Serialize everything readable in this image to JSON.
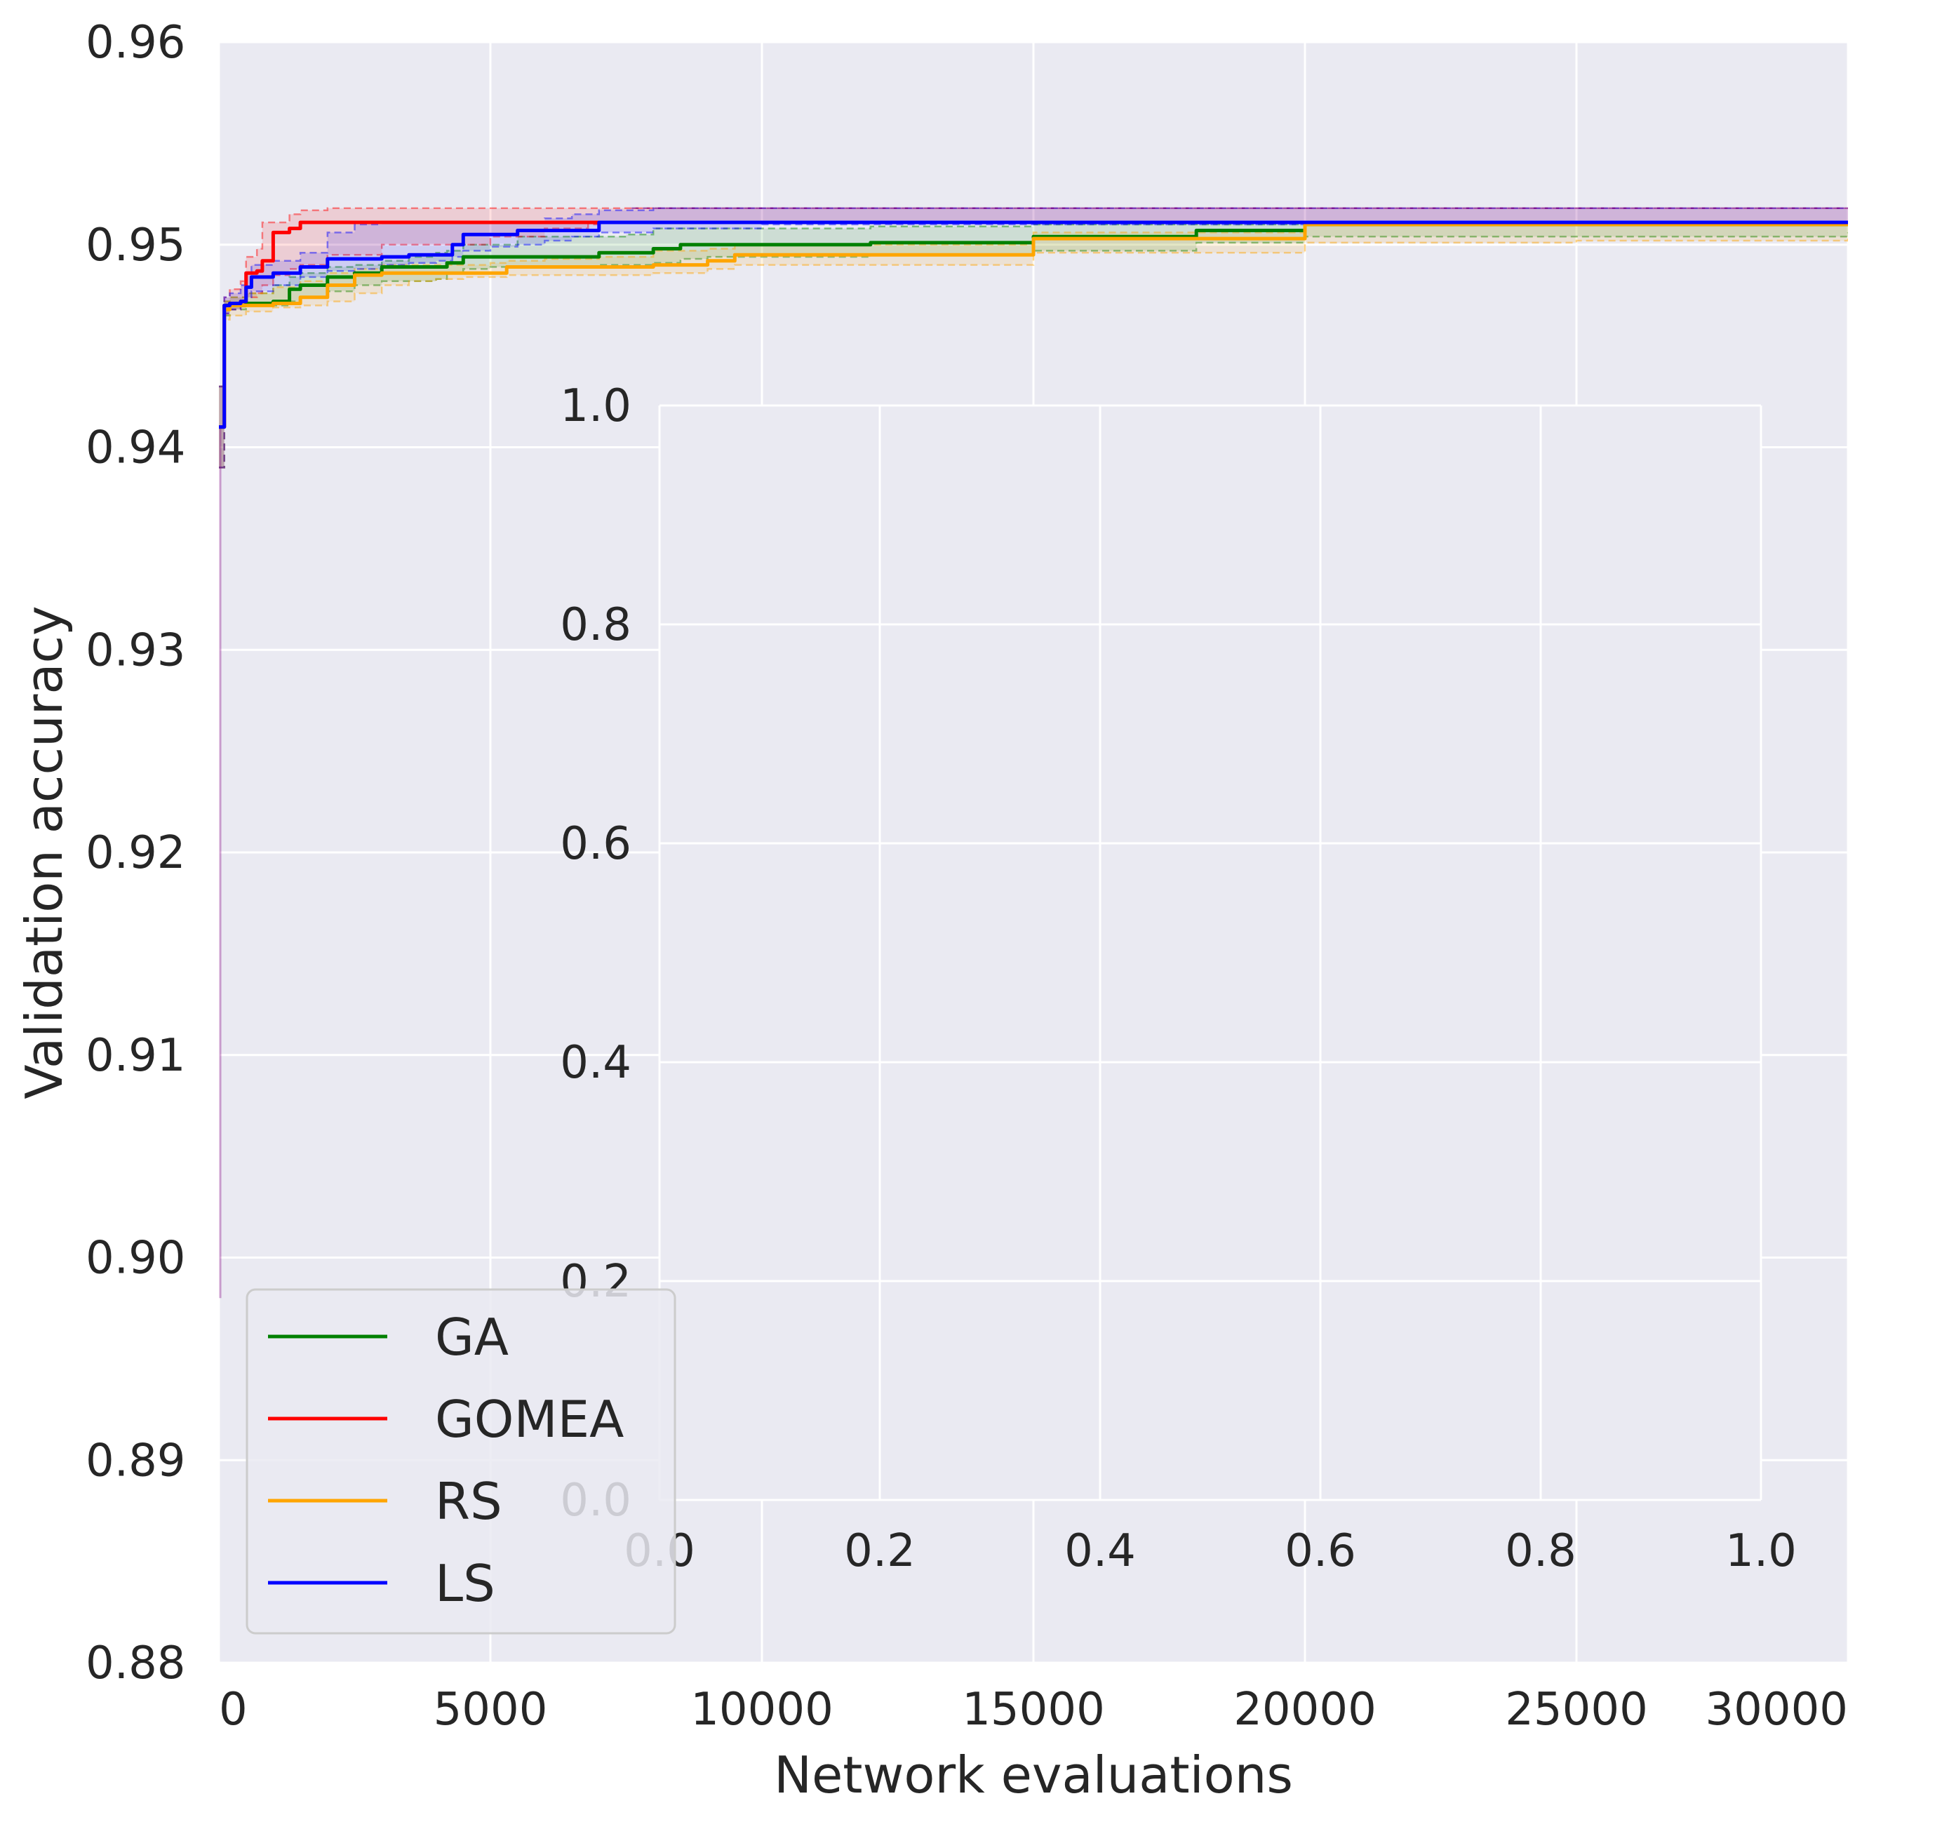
{
  "chart_data": [
    {
      "type": "line",
      "xlabel": "Network evaluations",
      "ylabel": "Validation accuracy",
      "xlim": [
        0,
        30000
      ],
      "ylim": [
        0.88,
        0.96
      ],
      "xticks": [
        0,
        5000,
        10000,
        15000,
        20000,
        25000,
        30000
      ],
      "xtick_labels": [
        "0",
        "5000",
        "10000",
        "15000",
        "20000",
        "25000",
        "30000"
      ],
      "yticks": [
        0.88,
        0.89,
        0.9,
        0.91,
        0.92,
        0.93,
        0.94,
        0.95,
        0.96
      ],
      "ytick_labels": [
        "0.88",
        "0.89",
        "0.90",
        "0.91",
        "0.92",
        "0.93",
        "0.94",
        "0.95",
        "0.96"
      ],
      "grid": true,
      "legend_position": "bottom-left",
      "series": [
        {
          "name": "GA",
          "color": "#008000",
          "x": [
            0,
            100,
            200,
            500,
            1000,
            1300,
            1500,
            2000,
            2500,
            3000,
            3500,
            4000,
            4200,
            4500,
            5000,
            5500,
            6000,
            6500,
            7000,
            7500,
            8000,
            8500,
            9000,
            10000,
            12000,
            15000,
            18000,
            20000,
            25000,
            30000
          ],
          "values": [
            0.941,
            0.947,
            0.947,
            0.9471,
            0.9472,
            0.9478,
            0.948,
            0.9484,
            0.9486,
            0.9489,
            0.9489,
            0.9489,
            0.9491,
            0.9494,
            0.9494,
            0.9494,
            0.9494,
            0.9494,
            0.9496,
            0.9496,
            0.9498,
            0.95,
            0.95,
            0.95,
            0.9501,
            0.9504,
            0.9507,
            0.951,
            0.951,
            0.951
          ],
          "lower": [
            0.939,
            0.9465,
            0.9468,
            0.947,
            0.947,
            0.9472,
            0.9474,
            0.9477,
            0.948,
            0.9482,
            0.9482,
            0.9483,
            0.9486,
            0.9488,
            0.9489,
            0.9489,
            0.9489,
            0.9489,
            0.949,
            0.949,
            0.9491,
            0.9493,
            0.9494,
            0.9494,
            0.9495,
            0.9497,
            0.9501,
            0.9504,
            0.9504,
            0.9506
          ],
          "upper": [
            0.943,
            0.9472,
            0.9474,
            0.9476,
            0.948,
            0.9484,
            0.9486,
            0.9489,
            0.949,
            0.9492,
            0.9494,
            0.9496,
            0.9497,
            0.95,
            0.95,
            0.9504,
            0.9504,
            0.9504,
            0.9504,
            0.9505,
            0.9508,
            0.9508,
            0.9508,
            0.9508,
            0.9509,
            0.951,
            0.951,
            0.951,
            0.951,
            0.951
          ]
        },
        {
          "name": "GOMEA",
          "color": "#ff0000",
          "x": [
            0,
            100,
            200,
            400,
            500,
            700,
            800,
            1000,
            1300,
            1500,
            2000,
            3000,
            5000,
            6000,
            6800,
            7000,
            10000,
            20000,
            30000
          ],
          "values": [
            0.941,
            0.947,
            0.9471,
            0.9472,
            0.9486,
            0.9487,
            0.9492,
            0.9506,
            0.9508,
            0.9511,
            0.9511,
            0.9511,
            0.9511,
            0.9511,
            0.9511,
            0.9511,
            0.9511,
            0.9511,
            0.9511
          ],
          "lower": [
            0.939,
            0.9466,
            0.9468,
            0.947,
            0.9474,
            0.9476,
            0.948,
            0.9485,
            0.9488,
            0.949,
            0.9495,
            0.95,
            0.9504,
            0.9508,
            0.951,
            0.9511,
            0.9511,
            0.9511,
            0.9511
          ],
          "upper": [
            0.943,
            0.9474,
            0.9478,
            0.9482,
            0.9494,
            0.9498,
            0.9511,
            0.9511,
            0.9515,
            0.9517,
            0.9518,
            0.9518,
            0.9518,
            0.9518,
            0.9518,
            0.9518,
            0.9518,
            0.9518,
            0.9518
          ]
        },
        {
          "name": "RS",
          "color": "#ffa500",
          "x": [
            0,
            100,
            200,
            500,
            1000,
            1500,
            2000,
            2500,
            3000,
            3500,
            4000,
            4500,
            5000,
            5300,
            6000,
            7000,
            8000,
            9000,
            9500,
            10000,
            15000,
            20000,
            25000,
            30000
          ],
          "values": [
            0.941,
            0.9468,
            0.947,
            0.947,
            0.9471,
            0.9474,
            0.948,
            0.9485,
            0.9486,
            0.9486,
            0.9486,
            0.9486,
            0.9486,
            0.9489,
            0.9489,
            0.9489,
            0.949,
            0.9492,
            0.9495,
            0.9495,
            0.9503,
            0.951,
            0.951,
            0.951
          ],
          "lower": [
            0.939,
            0.9463,
            0.9465,
            0.9467,
            0.9469,
            0.947,
            0.9472,
            0.9476,
            0.948,
            0.9482,
            0.9483,
            0.9484,
            0.9484,
            0.9485,
            0.9485,
            0.9485,
            0.9486,
            0.9488,
            0.949,
            0.949,
            0.9496,
            0.9501,
            0.9502,
            0.9503
          ],
          "upper": [
            0.943,
            0.9472,
            0.9474,
            0.9476,
            0.9479,
            0.9482,
            0.9486,
            0.9488,
            0.949,
            0.949,
            0.949,
            0.949,
            0.9491,
            0.9492,
            0.9493,
            0.9494,
            0.9497,
            0.9498,
            0.95,
            0.95,
            0.9506,
            0.951,
            0.951,
            0.951
          ]
        },
        {
          "name": "LS",
          "color": "#0000ff",
          "x": [
            0,
            100,
            200,
            400,
            500,
            600,
            1000,
            1500,
            2000,
            2500,
            3000,
            3500,
            4000,
            4300,
            4500,
            5000,
            5500,
            6000,
            6500,
            7000,
            8000,
            10000,
            20000,
            30000
          ],
          "values": [
            0.941,
            0.947,
            0.9471,
            0.9472,
            0.9479,
            0.9484,
            0.9486,
            0.9489,
            0.9493,
            0.9493,
            0.9494,
            0.9495,
            0.9495,
            0.95,
            0.9505,
            0.9505,
            0.9507,
            0.9507,
            0.9507,
            0.9511,
            0.9511,
            0.9511,
            0.9511,
            0.9511
          ],
          "lower": [
            0.939,
            0.9466,
            0.9468,
            0.947,
            0.9474,
            0.9477,
            0.948,
            0.9484,
            0.9487,
            0.9488,
            0.949,
            0.9491,
            0.9492,
            0.9494,
            0.9497,
            0.9499,
            0.95,
            0.9502,
            0.9504,
            0.9506,
            0.9508,
            0.951,
            0.9511,
            0.9511
          ],
          "upper": [
            0.943,
            0.9474,
            0.9476,
            0.948,
            0.9486,
            0.949,
            0.9492,
            0.9496,
            0.9506,
            0.951,
            0.9511,
            0.9511,
            0.9511,
            0.9511,
            0.9511,
            0.9511,
            0.9511,
            0.9513,
            0.9515,
            0.9517,
            0.9518,
            0.9518,
            0.9518,
            0.9518
          ]
        }
      ]
    },
    {
      "type": "line",
      "title": "",
      "xlabel": "",
      "ylabel": "",
      "xlim": [
        0.0,
        1.0
      ],
      "ylim": [
        0.0,
        1.0
      ],
      "xticks": [
        0.0,
        0.2,
        0.4,
        0.6,
        0.8,
        1.0
      ],
      "xtick_labels": [
        "0.0",
        "0.2",
        "0.4",
        "0.6",
        "0.8",
        "1.0"
      ],
      "yticks": [
        0.0,
        0.2,
        0.4,
        0.6,
        0.8,
        1.0
      ],
      "ytick_labels": [
        "0.0",
        "0.2",
        "0.4",
        "0.6",
        "0.8",
        "1.0"
      ],
      "grid": true,
      "series": []
    }
  ],
  "colors": {
    "axes_background": "#eaeaf2",
    "grid": "#ffffff",
    "text": "#262626",
    "purple_reference": "#800080"
  }
}
